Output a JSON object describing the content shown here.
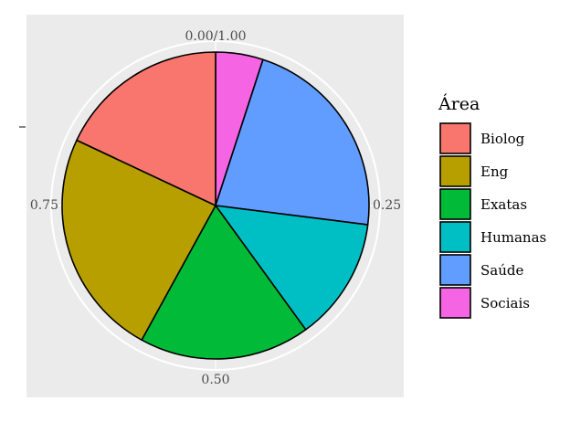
{
  "chart_data": {
    "type": "pie",
    "coord": "polar",
    "angle_ticks": [
      {
        "value": 0.0,
        "label": "0.00/1.00"
      },
      {
        "value": 0.25,
        "label": "0.25"
      },
      {
        "value": 0.5,
        "label": "0.50"
      },
      {
        "value": 0.75,
        "label": "0.75"
      }
    ],
    "legend": {
      "title": "Área",
      "placement": "right"
    },
    "slices": [
      {
        "name": "Sociais",
        "value": 0.05,
        "color": "#F564E3"
      },
      {
        "name": "Saúde",
        "value": 0.22,
        "color": "#619CFF"
      },
      {
        "name": "Humanas",
        "value": 0.13,
        "color": "#00BFC4"
      },
      {
        "name": "Exatas",
        "value": 0.18,
        "color": "#00BA38"
      },
      {
        "name": "Eng",
        "value": 0.24,
        "color": "#B79F00"
      },
      {
        "name": "Biolog",
        "value": 0.18,
        "color": "#F8766D"
      }
    ],
    "legend_order": [
      "Biolog",
      "Eng",
      "Exatas",
      "Humanas",
      "Saúde",
      "Sociais"
    ],
    "panel_color": "#EBEBEB",
    "grid_color": "#FFFFFF"
  }
}
